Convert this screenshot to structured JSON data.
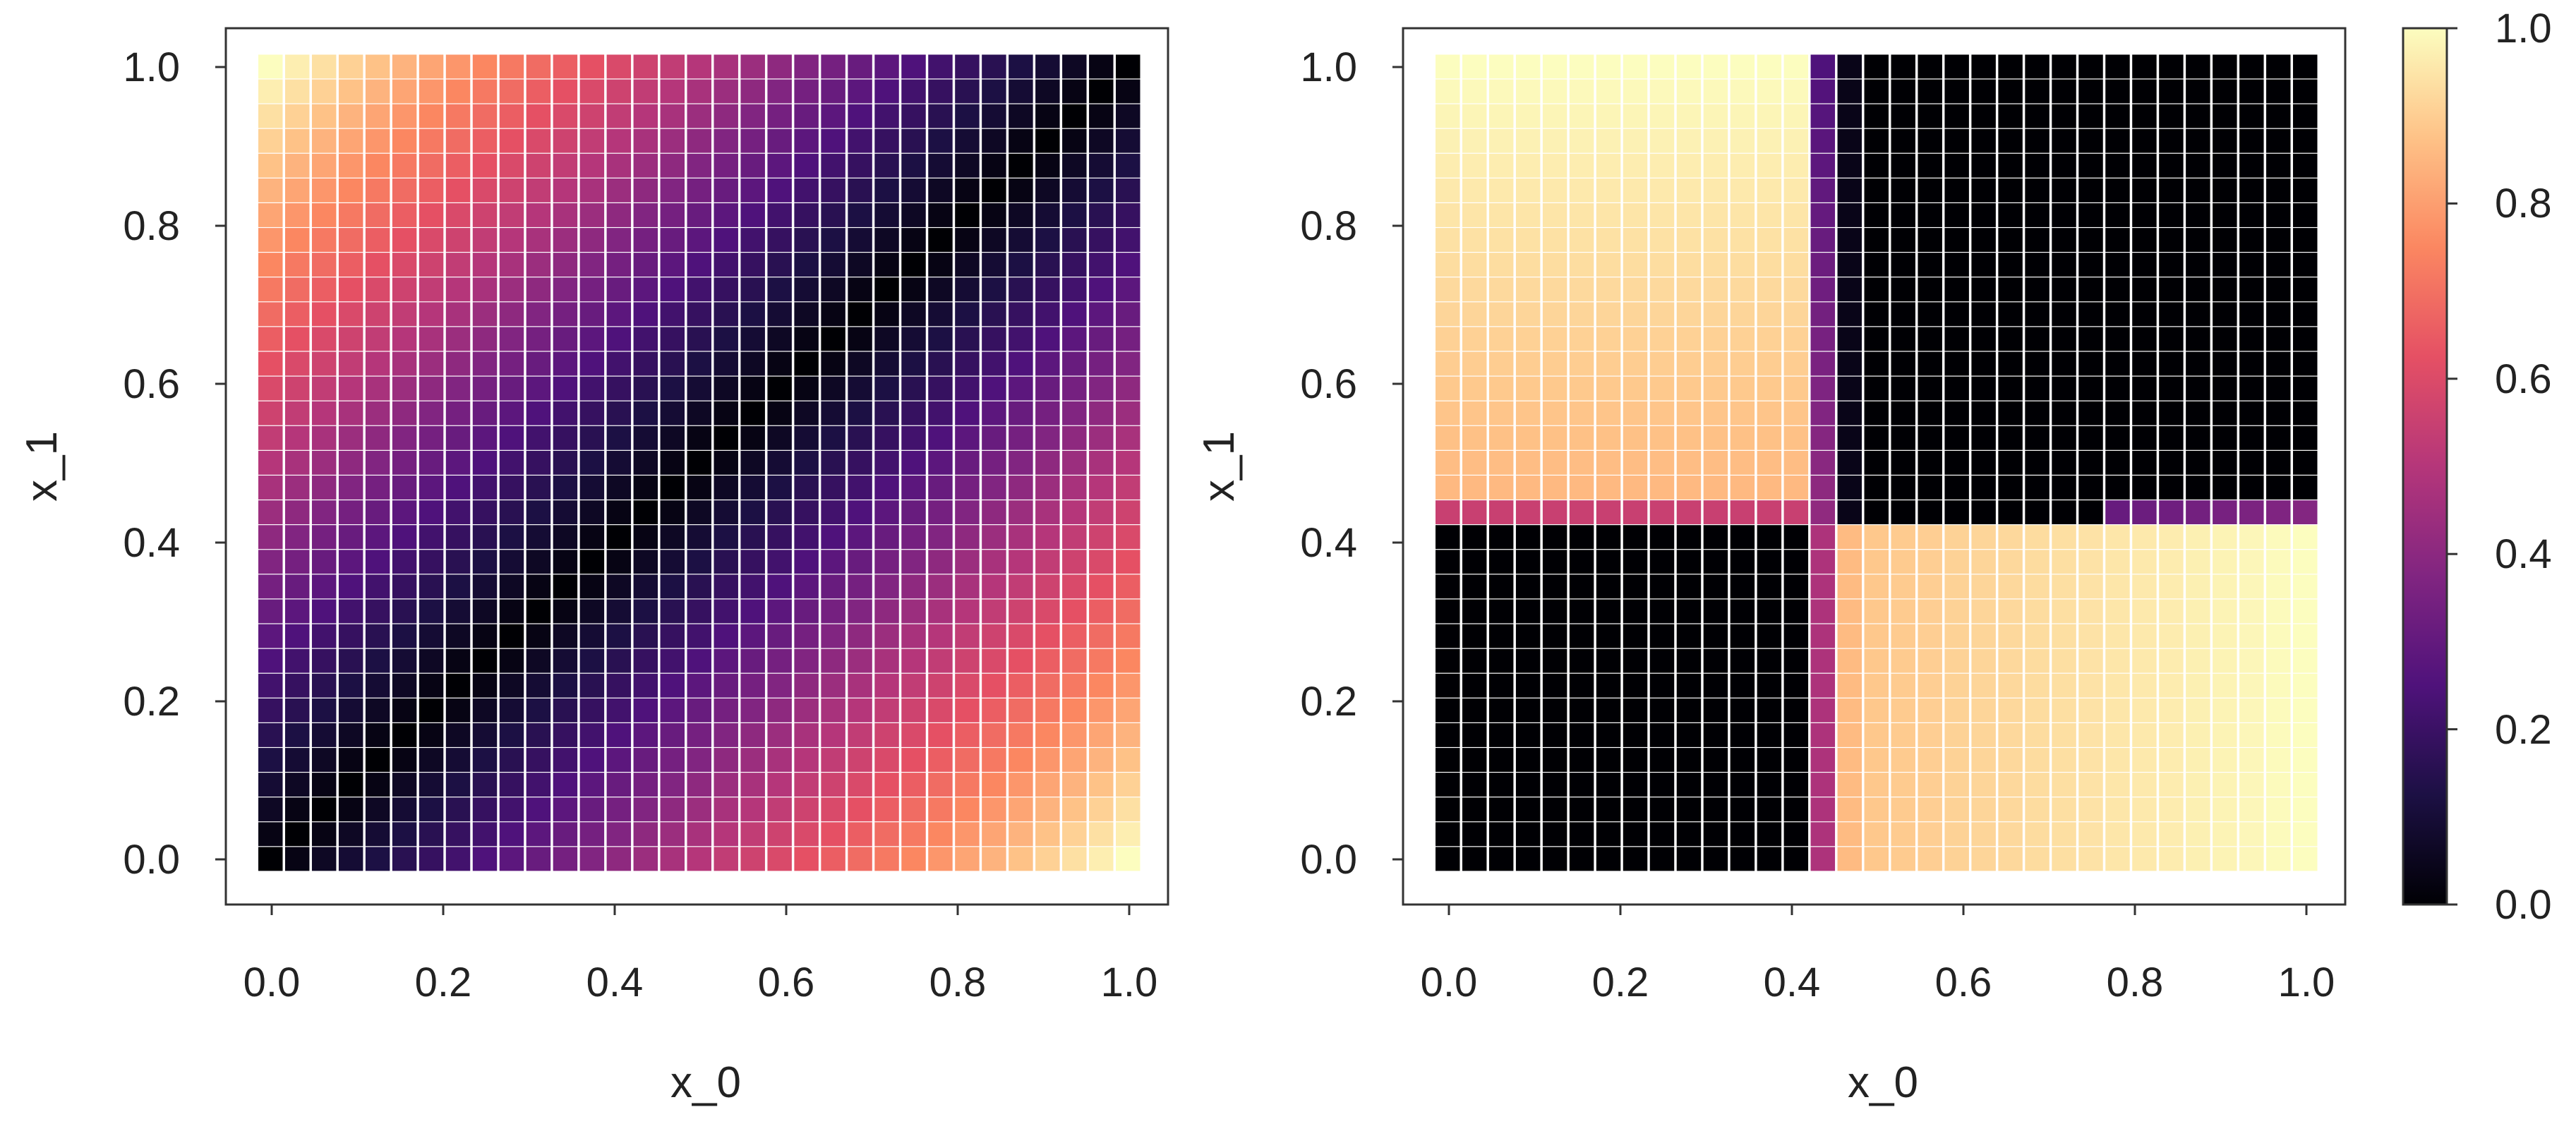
{
  "chart_data": [
    {
      "type": "heatmap",
      "title": "",
      "xlabel": "x_0",
      "ylabel": "x_1",
      "xlim": [
        0,
        1
      ],
      "ylim": [
        0,
        1
      ],
      "x_ticks": [
        "0.0",
        "0.2",
        "0.4",
        "0.6",
        "0.8",
        "1.0"
      ],
      "y_ticks": [
        "0.0",
        "0.2",
        "0.4",
        "0.6",
        "0.8",
        "1.0"
      ],
      "grid": {
        "nx": 33,
        "ny": 33,
        "x_range": [
          0,
          1
        ],
        "y_range": [
          0,
          1
        ]
      },
      "value_rule": "value = |x_1 - x_0|",
      "colormap": "magma"
    },
    {
      "type": "heatmap",
      "title": "",
      "xlabel": "x_0",
      "ylabel": "x_1",
      "xlim": [
        0,
        1
      ],
      "ylim": [
        0,
        1
      ],
      "x_ticks": [
        "0.0",
        "0.2",
        "0.4",
        "0.6",
        "0.8",
        "1.0"
      ],
      "y_ticks": [
        "0.0",
        "0.2",
        "0.4",
        "0.6",
        "0.8",
        "1.0"
      ],
      "grid": {
        "nx": 33,
        "ny": 33,
        "x_range": [
          0,
          1
        ],
        "y_range": [
          0,
          1
        ]
      },
      "value_rule": "XOR-like step: ~0.85-1.0 where (x_0 < 0.41 and x_1 > 0.42) or (x_0 > 0.41 and x_1 < 0.41); ~0 elsewhere; transition ~0.3-0.5 near x_0 = 0.42 and x_1 = 0.42",
      "colormap": "magma"
    }
  ],
  "colorbar": {
    "ticks": [
      "0.0",
      "0.2",
      "0.4",
      "0.6",
      "0.8",
      "1.0"
    ],
    "range": [
      0,
      1
    ],
    "colormap": "magma"
  }
}
